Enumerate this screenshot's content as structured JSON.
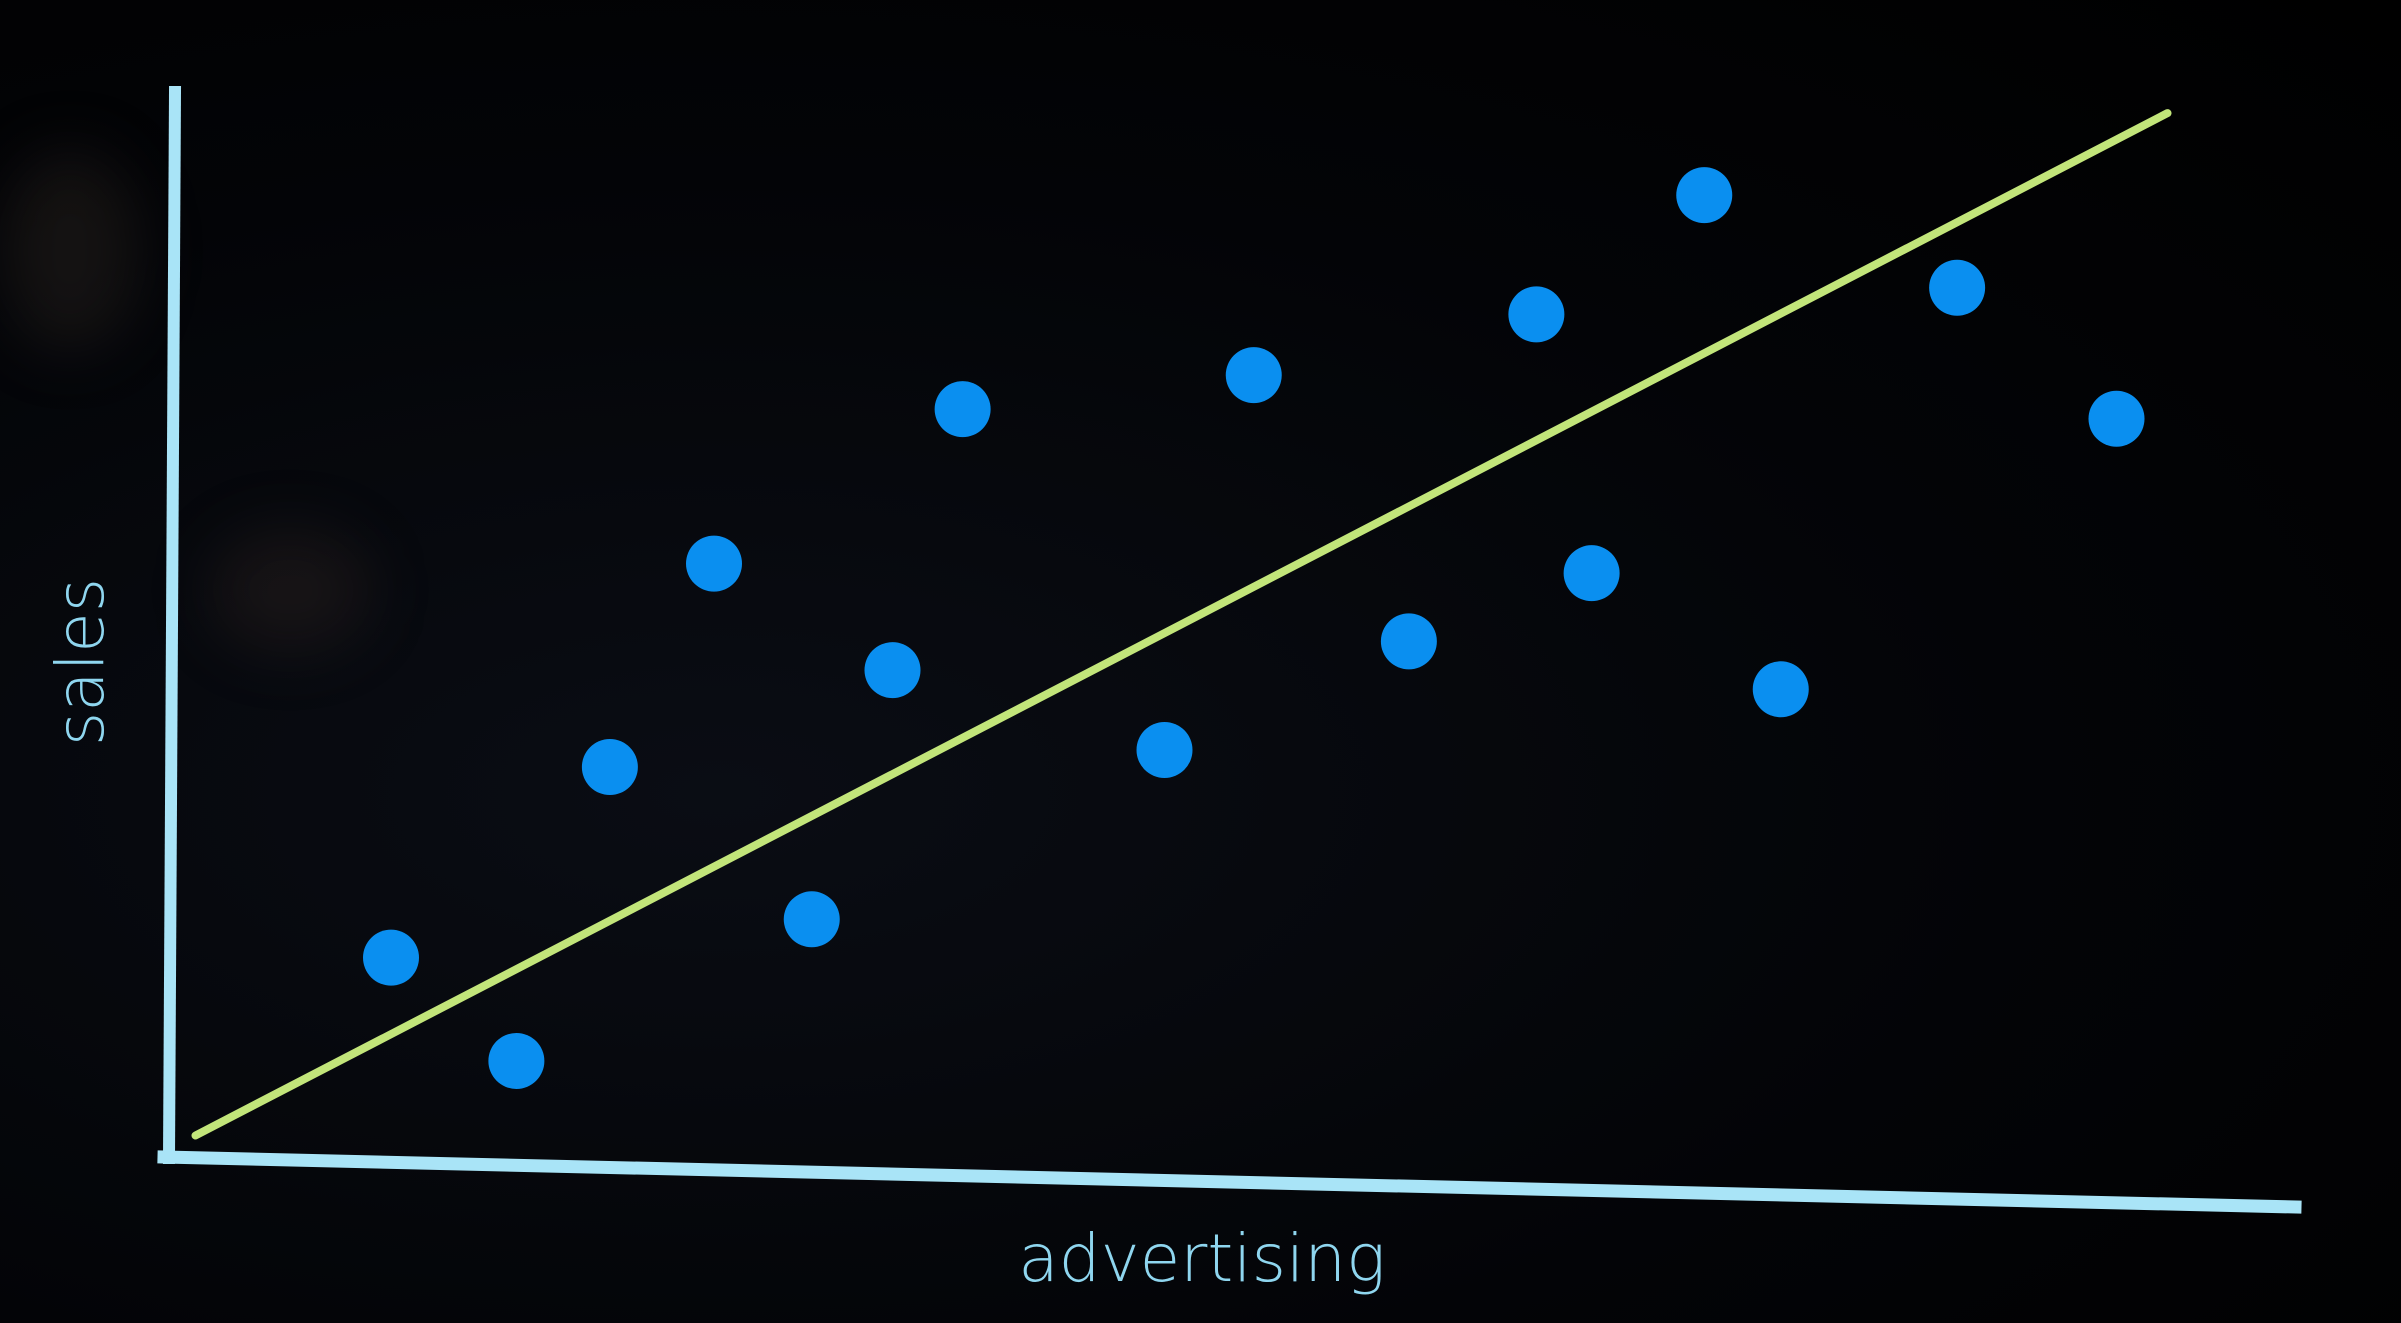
{
  "colors": {
    "background": "#000000",
    "axis": "#a9e4f7",
    "axis_label": "#8fd6ef",
    "points": "#0a8ff0",
    "trend_line": "#c2e57a"
  },
  "chart_data": {
    "type": "scatter",
    "title": "",
    "xlabel": "advertising",
    "ylabel": "sales",
    "xlim": [
      0,
      100
    ],
    "ylim": [
      0,
      100
    ],
    "grid": false,
    "legend": "none",
    "tick_labels": false,
    "series": [
      {
        "points": [
          {
            "x": 10.4,
            "y": 19.0
          },
          {
            "x": 16.3,
            "y": 9.3
          },
          {
            "x": 20.7,
            "y": 36.9
          },
          {
            "x": 25.6,
            "y": 56.0
          },
          {
            "x": 30.2,
            "y": 22.6
          },
          {
            "x": 34.0,
            "y": 46.0
          },
          {
            "x": 37.3,
            "y": 70.5
          },
          {
            "x": 46.8,
            "y": 38.5
          },
          {
            "x": 51.0,
            "y": 73.7
          },
          {
            "x": 58.3,
            "y": 48.7
          },
          {
            "x": 64.3,
            "y": 79.4
          },
          {
            "x": 66.9,
            "y": 55.1
          },
          {
            "x": 72.2,
            "y": 90.6
          },
          {
            "x": 75.8,
            "y": 44.2
          },
          {
            "x": 84.1,
            "y": 81.9
          },
          {
            "x": 91.6,
            "y": 69.6
          }
        ]
      }
    ],
    "trend_line": {
      "x": [
        1.2,
        94.0
      ],
      "y": [
        2.3,
        98.3
      ]
    }
  }
}
